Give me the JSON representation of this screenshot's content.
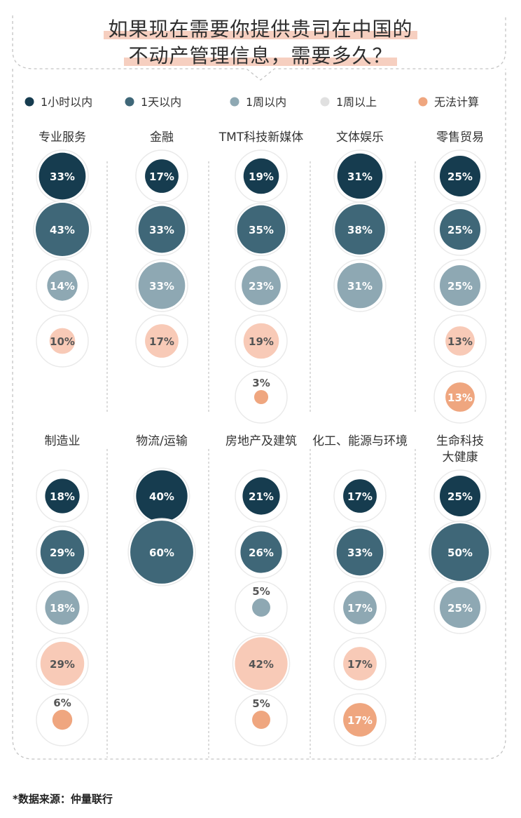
{
  "title": {
    "line1": "如果现在需要你提供贵司在中国的",
    "line2": "不动产管理信息，需要多久？"
  },
  "colors": {
    "1h": "#163c4f",
    "1d": "#3f6778",
    "1w": "#8ea8b3",
    "over_1w": "#e0e0e0",
    "unknown_light": "#f8cab7",
    "unknown": "#efa67f",
    "ring": "#e9e9e9",
    "dash": "#c4c4c4"
  },
  "legend": [
    {
      "label": "1小时以内",
      "color": "#163c4f"
    },
    {
      "label": "1天以内",
      "color": "#3f6778"
    },
    {
      "label": "1周以内",
      "color": "#8ea8b3"
    },
    {
      "label": "1周以上",
      "color": "#e0e0e0"
    },
    {
      "label": "无法计算",
      "color": "#efa67f"
    }
  ],
  "source": "*数据来源：仲量联行",
  "chart_data": {
    "type": "bubble-matrix",
    "value_unit": "%",
    "industries": [
      {
        "name": "专业服务",
        "items": [
          {
            "category": "1小时以内",
            "value": 33,
            "label": "33%"
          },
          {
            "category": "1天以内",
            "value": 43,
            "label": "43%"
          },
          {
            "category": "1周以内",
            "value": 14,
            "label": "14%"
          },
          {
            "category": "无法计算",
            "value": 10,
            "label": "10%",
            "shade": "light"
          }
        ]
      },
      {
        "name": "金融",
        "items": [
          {
            "category": "1小时以内",
            "value": 17,
            "label": "17%"
          },
          {
            "category": "1天以内",
            "value": 33,
            "label": "33%"
          },
          {
            "category": "1周以内",
            "value": 33,
            "label": "33%"
          },
          {
            "category": "无法计算",
            "value": 17,
            "label": "17%",
            "shade": "light"
          }
        ]
      },
      {
        "name": "TMT科技新媒体",
        "items": [
          {
            "category": "1小时以内",
            "value": 19,
            "label": "19%"
          },
          {
            "category": "1天以内",
            "value": 35,
            "label": "35%"
          },
          {
            "category": "1周以内",
            "value": 23,
            "label": "23%"
          },
          {
            "category": "无法计算",
            "value": 19,
            "label": "19%",
            "shade": "light"
          },
          {
            "category": "无法计算",
            "value": 3,
            "label": "3%"
          }
        ]
      },
      {
        "name": "文体娱乐",
        "items": [
          {
            "category": "1小时以内",
            "value": 31,
            "label": "31%"
          },
          {
            "category": "1天以内",
            "value": 38,
            "label": "38%"
          },
          {
            "category": "1周以内",
            "value": 31,
            "label": "31%"
          }
        ]
      },
      {
        "name": "零售贸易",
        "items": [
          {
            "category": "1小时以内",
            "value": 25,
            "label": "25%"
          },
          {
            "category": "1天以内",
            "value": 25,
            "label": "25%"
          },
          {
            "category": "1周以内",
            "value": 25,
            "label": "25%"
          },
          {
            "category": "无法计算",
            "value": 13,
            "label": "13%",
            "shade": "light"
          },
          {
            "category": "无法计算",
            "value": 13,
            "label": "13%"
          }
        ]
      },
      {
        "name": "制造业",
        "items": [
          {
            "category": "1小时以内",
            "value": 18,
            "label": "18%"
          },
          {
            "category": "1天以内",
            "value": 29,
            "label": "29%"
          },
          {
            "category": "1周以内",
            "value": 18,
            "label": "18%"
          },
          {
            "category": "无法计算",
            "value": 29,
            "label": "29%",
            "shade": "light"
          },
          {
            "category": "无法计算",
            "value": 6,
            "label": "6%"
          }
        ]
      },
      {
        "name": "物流/运输",
        "items": [
          {
            "category": "1小时以内",
            "value": 40,
            "label": "40%"
          },
          {
            "category": "1天以内",
            "value": 60,
            "label": "60%"
          }
        ]
      },
      {
        "name": "房地产及建筑",
        "items": [
          {
            "category": "1小时以内",
            "value": 21,
            "label": "21%"
          },
          {
            "category": "1天以内",
            "value": 26,
            "label": "26%"
          },
          {
            "category": "1周以内",
            "value": 5,
            "label": "5%"
          },
          {
            "category": "无法计算",
            "value": 42,
            "label": "42%",
            "shade": "light"
          },
          {
            "category": "无法计算",
            "value": 5,
            "label": "5%"
          }
        ]
      },
      {
        "name": "化工、能源与环境",
        "items": [
          {
            "category": "1小时以内",
            "value": 17,
            "label": "17%"
          },
          {
            "category": "1天以内",
            "value": 33,
            "label": "33%"
          },
          {
            "category": "1周以内",
            "value": 17,
            "label": "17%"
          },
          {
            "category": "无法计算",
            "value": 17,
            "label": "17%",
            "shade": "light"
          },
          {
            "category": "无法计算",
            "value": 17,
            "label": "17%"
          }
        ]
      },
      {
        "name": "生命科技\n大健康",
        "items": [
          {
            "category": "1小时以内",
            "value": 25,
            "label": "25%"
          },
          {
            "category": "1天以内",
            "value": 50,
            "label": "50%"
          },
          {
            "category": "1周以内",
            "value": 25,
            "label": "25%"
          }
        ]
      }
    ]
  }
}
